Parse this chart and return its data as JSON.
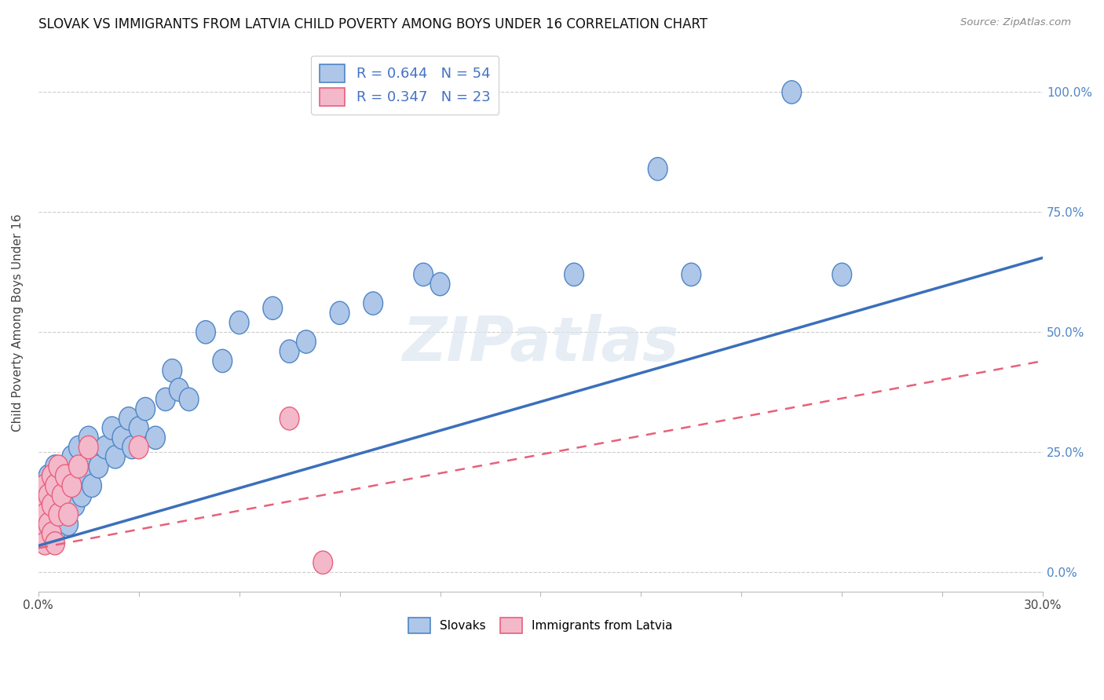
{
  "title": "SLOVAK VS IMMIGRANTS FROM LATVIA CHILD POVERTY AMONG BOYS UNDER 16 CORRELATION CHART",
  "source": "Source: ZipAtlas.com",
  "ylabel": "Child Poverty Among Boys Under 16",
  "yticks": [
    "0.0%",
    "25.0%",
    "50.0%",
    "75.0%",
    "100.0%"
  ],
  "ytick_vals": [
    0.0,
    0.25,
    0.5,
    0.75,
    1.0
  ],
  "xlim": [
    0.0,
    0.3
  ],
  "ylim": [
    -0.04,
    1.08
  ],
  "watermark": "ZIPatlas",
  "slovaks_color": "#aec6e8",
  "slovaks_edge_color": "#4f86c6",
  "latvians_color": "#f4b8cb",
  "latvians_edge_color": "#e8607a",
  "trend_slovak_color": "#3b6fba",
  "trend_latvian_color": "#e8607a",
  "slovak_trend_x0": 0.0,
  "slovak_trend_y0": 0.055,
  "slovak_trend_x1": 0.3,
  "slovak_trend_y1": 0.655,
  "latvian_trend_x0": 0.0,
  "latvian_trend_y0": 0.05,
  "latvian_trend_x1": 0.3,
  "latvian_trend_y1": 0.44,
  "slovaks_x": [
    0.001,
    0.002,
    0.003,
    0.003,
    0.004,
    0.005,
    0.005,
    0.006,
    0.006,
    0.007,
    0.007,
    0.008,
    0.008,
    0.009,
    0.01,
    0.01,
    0.011,
    0.012,
    0.012,
    0.013,
    0.014,
    0.015,
    0.015,
    0.016,
    0.017,
    0.018,
    0.02,
    0.022,
    0.023,
    0.025,
    0.027,
    0.028,
    0.03,
    0.032,
    0.035,
    0.038,
    0.04,
    0.042,
    0.045,
    0.05,
    0.055,
    0.06,
    0.07,
    0.075,
    0.08,
    0.09,
    0.1,
    0.115,
    0.12,
    0.16,
    0.185,
    0.195,
    0.225,
    0.24
  ],
  "slovaks_y": [
    0.12,
    0.18,
    0.1,
    0.2,
    0.15,
    0.08,
    0.22,
    0.14,
    0.2,
    0.12,
    0.18,
    0.16,
    0.22,
    0.1,
    0.18,
    0.24,
    0.14,
    0.2,
    0.26,
    0.16,
    0.22,
    0.2,
    0.28,
    0.18,
    0.24,
    0.22,
    0.26,
    0.3,
    0.24,
    0.28,
    0.32,
    0.26,
    0.3,
    0.34,
    0.28,
    0.36,
    0.42,
    0.38,
    0.36,
    0.5,
    0.44,
    0.52,
    0.55,
    0.46,
    0.48,
    0.54,
    0.56,
    0.62,
    0.6,
    0.62,
    0.84,
    0.62,
    1.0,
    0.62
  ],
  "latvians_x": [
    0.001,
    0.001,
    0.002,
    0.002,
    0.002,
    0.003,
    0.003,
    0.004,
    0.004,
    0.004,
    0.005,
    0.005,
    0.006,
    0.006,
    0.007,
    0.008,
    0.009,
    0.01,
    0.012,
    0.015,
    0.03,
    0.075,
    0.085
  ],
  "latvians_y": [
    0.08,
    0.14,
    0.06,
    0.12,
    0.18,
    0.1,
    0.16,
    0.08,
    0.14,
    0.2,
    0.06,
    0.18,
    0.12,
    0.22,
    0.16,
    0.2,
    0.12,
    0.18,
    0.22,
    0.26,
    0.26,
    0.32,
    0.02
  ]
}
